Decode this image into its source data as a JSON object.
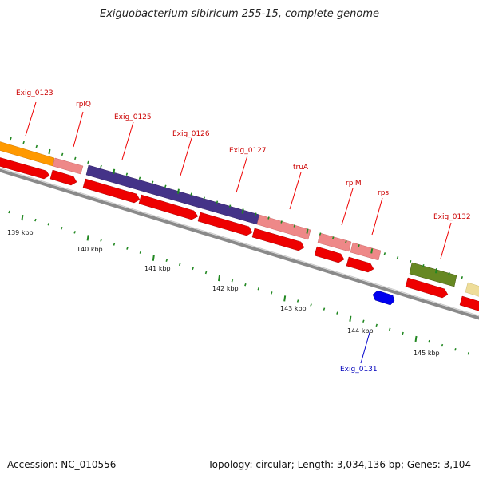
{
  "title": "Exiguobacterium sibiricum 255-15, complete genome",
  "accession": "Accession: NC_010556",
  "summary": "Topology: circular; Length: 3,034,136 bp; Genes: 3,104",
  "colors": {
    "label_red": "#cc0000",
    "label_blue": "#0000bb",
    "cds_red": "#ee0000",
    "gene_pink": "#ee8888",
    "gene_orange": "#ff9900",
    "gene_purple": "#443388",
    "gene_olive": "#668822",
    "gene_yellow": "#eedd99",
    "gene_blue": "#0000ee",
    "tick_green": "#228822",
    "backbone": "#888888"
  },
  "kbp_ticks": [
    {
      "label": "139 kbp"
    },
    {
      "label": "140 kbp"
    },
    {
      "label": "141 kbp"
    },
    {
      "label": "142 kbp"
    },
    {
      "label": "143 kbp"
    },
    {
      "label": "144 kbp"
    },
    {
      "label": "145 kbp"
    }
  ],
  "gene_labels": [
    {
      "name": "Exig_0123",
      "strand": "forward"
    },
    {
      "name": "rplQ",
      "strand": "forward"
    },
    {
      "name": "Exig_0125",
      "strand": "forward"
    },
    {
      "name": "Exig_0126",
      "strand": "forward"
    },
    {
      "name": "Exig_0127",
      "strand": "forward"
    },
    {
      "name": "truA",
      "strand": "forward"
    },
    {
      "name": "rplM",
      "strand": "forward"
    },
    {
      "name": "rpsI",
      "strand": "forward"
    },
    {
      "name": "Exig_0132",
      "strand": "forward"
    },
    {
      "name": "Exig_0131",
      "strand": "reverse"
    }
  ]
}
